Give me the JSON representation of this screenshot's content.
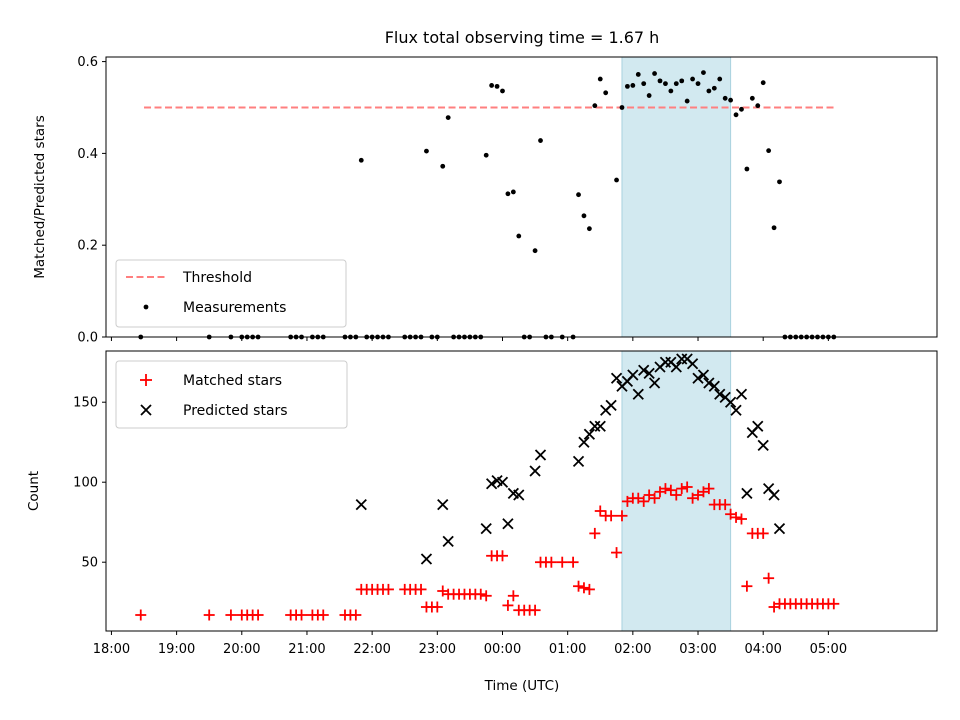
{
  "chart_data": [
    {
      "type": "scatter",
      "title": "Flux total observing time = 1.67 h",
      "ylabel": "Matched/Predicted stars",
      "ylim": [
        0,
        0.61
      ],
      "yticks": [
        0.0,
        0.2,
        0.4,
        0.6
      ],
      "ytick_labels": [
        "0.0",
        "0.2",
        "0.4",
        "0.6"
      ],
      "highlight": {
        "from": "01:50",
        "to": "03:30",
        "color": "#d2e9f0"
      },
      "threshold": {
        "name": "Threshold",
        "value": 0.5,
        "from": "18:30",
        "to": "05:05",
        "color": "#ff7f7f",
        "style": "dashed"
      },
      "legend": {
        "placement": "lower-left"
      },
      "series": [
        {
          "name": "Measurements",
          "color": "#000000",
          "marker": "dot",
          "points": [
            [
              "18:27",
              0
            ],
            [
              "19:30",
              0
            ],
            [
              "19:50",
              0
            ],
            [
              "20:00",
              0
            ],
            [
              "20:05",
              0
            ],
            [
              "20:10",
              0
            ],
            [
              "20:15",
              0
            ],
            [
              "20:45",
              0
            ],
            [
              "20:50",
              0
            ],
            [
              "20:55",
              0
            ],
            [
              "21:05",
              0
            ],
            [
              "21:10",
              0
            ],
            [
              "21:15",
              0
            ],
            [
              "21:35",
              0
            ],
            [
              "21:40",
              0
            ],
            [
              "21:45",
              0
            ],
            [
              "21:50",
              0.385
            ],
            [
              "21:55",
              0
            ],
            [
              "22:00",
              0
            ],
            [
              "22:05",
              0
            ],
            [
              "22:10",
              0
            ],
            [
              "22:15",
              0
            ],
            [
              "22:30",
              0
            ],
            [
              "22:35",
              0
            ],
            [
              "22:40",
              0
            ],
            [
              "22:45",
              0
            ],
            [
              "22:50",
              0.405
            ],
            [
              "22:55",
              0
            ],
            [
              "23:00",
              0
            ],
            [
              "23:05",
              0.372
            ],
            [
              "23:10",
              0.478
            ],
            [
              "23:15",
              0
            ],
            [
              "23:20",
              0
            ],
            [
              "23:25",
              0
            ],
            [
              "23:30",
              0
            ],
            [
              "23:35",
              0
            ],
            [
              "23:40",
              0
            ],
            [
              "23:45",
              0.396
            ],
            [
              "23:50",
              0.548
            ],
            [
              "23:55",
              0.546
            ],
            [
              "00:00",
              0.536
            ],
            [
              "00:05",
              0.312
            ],
            [
              "00:10",
              0.316
            ],
            [
              "00:15",
              0.22
            ],
            [
              "00:20",
              0
            ],
            [
              "00:25",
              0
            ],
            [
              "00:30",
              0.188
            ],
            [
              "00:35",
              0.428
            ],
            [
              "00:40",
              0
            ],
            [
              "00:45",
              0
            ],
            [
              "00:55",
              0
            ],
            [
              "01:05",
              0
            ],
            [
              "01:10",
              0.31
            ],
            [
              "01:15",
              0.264
            ],
            [
              "01:20",
              0.236
            ],
            [
              "01:25",
              0.504
            ],
            [
              "01:30",
              0.562
            ],
            [
              "01:35",
              0.532
            ],
            [
              "01:45",
              0.342
            ],
            [
              "01:50",
              0.5
            ],
            [
              "01:55",
              0.546
            ],
            [
              "02:00",
              0.548
            ],
            [
              "02:05",
              0.572
            ],
            [
              "02:10",
              0.552
            ],
            [
              "02:15",
              0.526
            ],
            [
              "02:20",
              0.574
            ],
            [
              "02:25",
              0.558
            ],
            [
              "02:30",
              0.552
            ],
            [
              "02:35",
              0.536
            ],
            [
              "02:40",
              0.552
            ],
            [
              "02:45",
              0.558
            ],
            [
              "02:50",
              0.514
            ],
            [
              "02:55",
              0.562
            ],
            [
              "03:00",
              0.552
            ],
            [
              "03:05",
              0.576
            ],
            [
              "03:10",
              0.536
            ],
            [
              "03:15",
              0.542
            ],
            [
              "03:20",
              0.562
            ],
            [
              "03:25",
              0.52
            ],
            [
              "03:30",
              0.516
            ],
            [
              "03:35",
              0.484
            ],
            [
              "03:40",
              0.496
            ],
            [
              "03:45",
              0.366
            ],
            [
              "03:50",
              0.52
            ],
            [
              "03:55",
              0.504
            ],
            [
              "04:00",
              0.554
            ],
            [
              "04:05",
              0.406
            ],
            [
              "04:10",
              0.238
            ],
            [
              "04:15",
              0.338
            ],
            [
              "04:20",
              0
            ],
            [
              "04:25",
              0
            ],
            [
              "04:30",
              0
            ],
            [
              "04:35",
              0
            ],
            [
              "04:40",
              0
            ],
            [
              "04:45",
              0
            ],
            [
              "04:50",
              0
            ],
            [
              "04:55",
              0
            ],
            [
              "05:00",
              0
            ],
            [
              "05:05",
              0
            ]
          ]
        }
      ]
    },
    {
      "type": "scatter",
      "xlabel": "Time (UTC)",
      "ylabel": "Count",
      "ylim": [
        7,
        182
      ],
      "yticks": [
        50,
        100,
        150
      ],
      "ytick_labels": [
        "50",
        "100",
        "150"
      ],
      "xticks": [
        "18:00",
        "19:00",
        "20:00",
        "21:00",
        "22:00",
        "23:00",
        "00:00",
        "01:00",
        "02:00",
        "03:00",
        "04:00",
        "05:00"
      ],
      "xtick_labels": [
        "18:00",
        "19:00",
        "20:00",
        "21:00",
        "22:00",
        "23:00",
        "00:00",
        "01:00",
        "02:00",
        "03:00",
        "04:00",
        "05:00"
      ],
      "xrange": [
        "17:55",
        "06:40"
      ],
      "highlight": {
        "from": "01:50",
        "to": "03:30",
        "color": "#d2e9f0"
      },
      "legend": {
        "placement": "upper-left"
      },
      "series": [
        {
          "name": "Matched stars",
          "color": "#ff0000",
          "marker": "plus",
          "points": [
            [
              "18:27",
              17
            ],
            [
              "19:30",
              17
            ],
            [
              "19:50",
              17
            ],
            [
              "20:00",
              17
            ],
            [
              "20:05",
              17
            ],
            [
              "20:10",
              17
            ],
            [
              "20:15",
              17
            ],
            [
              "20:45",
              17
            ],
            [
              "20:50",
              17
            ],
            [
              "20:55",
              17
            ],
            [
              "21:05",
              17
            ],
            [
              "21:10",
              17
            ],
            [
              "21:15",
              17
            ],
            [
              "21:35",
              17
            ],
            [
              "21:40",
              17
            ],
            [
              "21:45",
              17
            ],
            [
              "21:50",
              33
            ],
            [
              "21:55",
              33
            ],
            [
              "22:00",
              33
            ],
            [
              "22:05",
              33
            ],
            [
              "22:10",
              33
            ],
            [
              "22:15",
              33
            ],
            [
              "22:30",
              33
            ],
            [
              "22:35",
              33
            ],
            [
              "22:40",
              33
            ],
            [
              "22:45",
              33
            ],
            [
              "22:50",
              22
            ],
            [
              "22:55",
              22
            ],
            [
              "23:00",
              22
            ],
            [
              "23:05",
              32
            ],
            [
              "23:10",
              30
            ],
            [
              "23:15",
              30
            ],
            [
              "23:20",
              30
            ],
            [
              "23:25",
              30
            ],
            [
              "23:30",
              30
            ],
            [
              "23:35",
              30
            ],
            [
              "23:40",
              30
            ],
            [
              "23:45",
              29
            ],
            [
              "23:50",
              54
            ],
            [
              "23:55",
              54
            ],
            [
              "00:00",
              54
            ],
            [
              "00:05",
              23
            ],
            [
              "00:10",
              29
            ],
            [
              "00:15",
              20
            ],
            [
              "00:20",
              20
            ],
            [
              "00:25",
              20
            ],
            [
              "00:30",
              20
            ],
            [
              "00:35",
              50
            ],
            [
              "00:40",
              50
            ],
            [
              "00:45",
              50
            ],
            [
              "00:55",
              50
            ],
            [
              "01:05",
              50
            ],
            [
              "01:10",
              35
            ],
            [
              "01:15",
              34
            ],
            [
              "01:20",
              33
            ],
            [
              "01:25",
              68
            ],
            [
              "01:30",
              82
            ],
            [
              "01:35",
              79
            ],
            [
              "01:40",
              79
            ],
            [
              "01:45",
              56
            ],
            [
              "01:50",
              79
            ],
            [
              "01:55",
              88
            ],
            [
              "02:00",
              90
            ],
            [
              "02:05",
              90
            ],
            [
              "02:10",
              88
            ],
            [
              "02:15",
              92
            ],
            [
              "02:20",
              90
            ],
            [
              "02:25",
              94
            ],
            [
              "02:30",
              96
            ],
            [
              "02:35",
              95
            ],
            [
              "02:40",
              92
            ],
            [
              "02:45",
              96
            ],
            [
              "02:50",
              97
            ],
            [
              "02:55",
              90
            ],
            [
              "03:00",
              92
            ],
            [
              "03:05",
              94
            ],
            [
              "03:10",
              96
            ],
            [
              "03:15",
              86
            ],
            [
              "03:20",
              86
            ],
            [
              "03:25",
              86
            ],
            [
              "03:30",
              80
            ],
            [
              "03:35",
              78
            ],
            [
              "03:40",
              77
            ],
            [
              "03:45",
              35
            ],
            [
              "03:50",
              68
            ],
            [
              "03:55",
              68
            ],
            [
              "04:00",
              68
            ],
            [
              "04:05",
              40
            ],
            [
              "04:10",
              22
            ],
            [
              "04:15",
              24
            ],
            [
              "04:20",
              24
            ],
            [
              "04:25",
              24
            ],
            [
              "04:30",
              24
            ],
            [
              "04:35",
              24
            ],
            [
              "04:40",
              24
            ],
            [
              "04:45",
              24
            ],
            [
              "04:50",
              24
            ],
            [
              "04:55",
              24
            ],
            [
              "05:00",
              24
            ],
            [
              "05:05",
              24
            ]
          ]
        },
        {
          "name": "Predicted stars",
          "color": "#000000",
          "marker": "x",
          "points": [
            [
              "21:50",
              86
            ],
            [
              "22:50",
              52
            ],
            [
              "23:05",
              86
            ],
            [
              "23:10",
              63
            ],
            [
              "23:45",
              71
            ],
            [
              "23:50",
              99
            ],
            [
              "23:55",
              101
            ],
            [
              "00:00",
              100
            ],
            [
              "00:05",
              74
            ],
            [
              "00:10",
              93
            ],
            [
              "00:15",
              92
            ],
            [
              "00:30",
              107
            ],
            [
              "00:35",
              117
            ],
            [
              "01:10",
              113
            ],
            [
              "01:15",
              125
            ],
            [
              "01:20",
              130
            ],
            [
              "01:25",
              135
            ],
            [
              "01:30",
              135
            ],
            [
              "01:35",
              145
            ],
            [
              "01:40",
              148
            ],
            [
              "01:45",
              165
            ],
            [
              "01:50",
              160
            ],
            [
              "01:55",
              163
            ],
            [
              "02:00",
              167
            ],
            [
              "02:05",
              155
            ],
            [
              "02:10",
              170
            ],
            [
              "02:15",
              168
            ],
            [
              "02:20",
              162
            ],
            [
              "02:25",
              172
            ],
            [
              "02:30",
              175
            ],
            [
              "02:35",
              175
            ],
            [
              "02:40",
              172
            ],
            [
              "02:45",
              177
            ],
            [
              "02:50",
              177
            ],
            [
              "02:55",
              174
            ],
            [
              "03:00",
              165
            ],
            [
              "03:05",
              167
            ],
            [
              "03:10",
              162
            ],
            [
              "03:15",
              160
            ],
            [
              "03:20",
              155
            ],
            [
              "03:25",
              153
            ],
            [
              "03:30",
              150
            ],
            [
              "03:35",
              145
            ],
            [
              "03:40",
              155
            ],
            [
              "03:45",
              93
            ],
            [
              "03:50",
              131
            ],
            [
              "03:55",
              135
            ],
            [
              "04:00",
              123
            ],
            [
              "04:05",
              96
            ],
            [
              "04:10",
              92
            ],
            [
              "04:15",
              71
            ]
          ]
        }
      ]
    }
  ]
}
